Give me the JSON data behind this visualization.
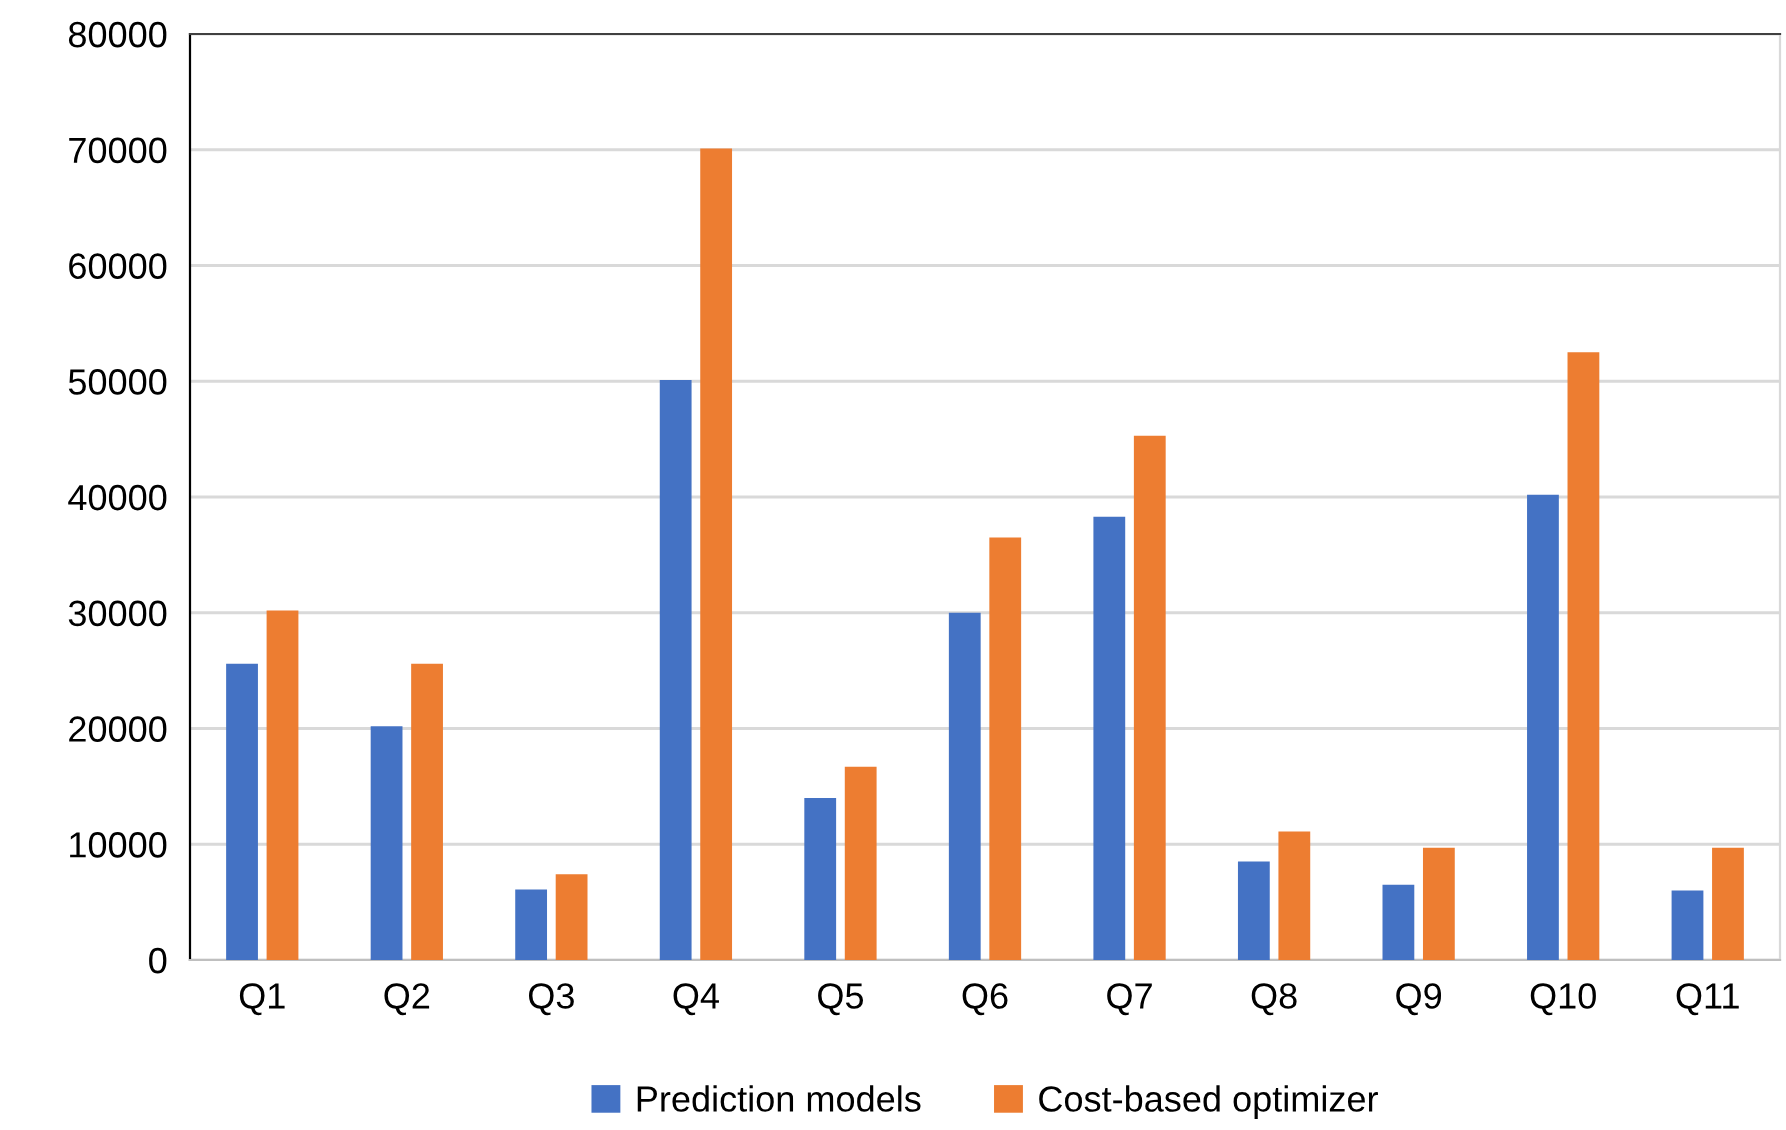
{
  "chart_data": {
    "type": "bar",
    "categories": [
      "Q1",
      "Q2",
      "Q3",
      "Q4",
      "Q5",
      "Q6",
      "Q7",
      "Q8",
      "Q9",
      "Q10",
      "Q11"
    ],
    "series": [
      {
        "name": "Prediction models",
        "color": "#4472c4",
        "values": [
          25600,
          20200,
          6100,
          50100,
          14000,
          30000,
          38300,
          8500,
          6500,
          40200,
          6000
        ]
      },
      {
        "name": "Cost-based optimizer",
        "color": "#ed7d31",
        "values": [
          30200,
          25600,
          7400,
          70100,
          16700,
          36500,
          45300,
          11100,
          9700,
          52500,
          9700
        ]
      }
    ],
    "ylim": [
      0,
      80000
    ],
    "yticks": [
      0,
      10000,
      20000,
      30000,
      40000,
      50000,
      60000,
      70000,
      80000
    ],
    "grid": "y",
    "legend": "bottom"
  }
}
